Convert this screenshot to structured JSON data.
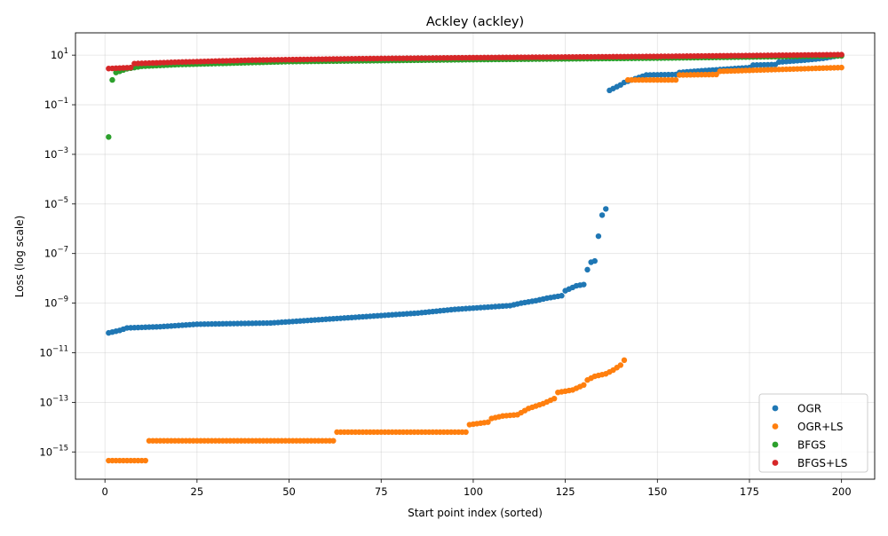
{
  "chart_data": {
    "type": "scatter",
    "title": "Ackley (ackley)",
    "xlabel": "Start point index (sorted)",
    "ylabel": "Loss (log scale)",
    "xlim": [
      -8,
      209
    ],
    "ylim_log10": [
      -16.1,
      1.9
    ],
    "yscale": "log",
    "grid": true,
    "legend_position": "lower-right",
    "x_ticks": [
      0,
      25,
      50,
      75,
      100,
      125,
      150,
      175,
      200
    ],
    "x_tick_labels": [
      "0",
      "25",
      "50",
      "75",
      "100",
      "125",
      "150",
      "175",
      "200"
    ],
    "y_ticks_exp": [
      -15,
      -13,
      -11,
      -9,
      -7,
      -5,
      -3,
      -1,
      1
    ],
    "y_tick_labels": [
      {
        "base": "10",
        "exp": "−15"
      },
      {
        "base": "10",
        "exp": "−13"
      },
      {
        "base": "10",
        "exp": "−11"
      },
      {
        "base": "10",
        "exp": "−9"
      },
      {
        "base": "10",
        "exp": "−7"
      },
      {
        "base": "10",
        "exp": "−5"
      },
      {
        "base": "10",
        "exp": "−3"
      },
      {
        "base": "10",
        "exp": "−1"
      },
      {
        "base": "10",
        "exp": "1"
      }
    ],
    "series": [
      {
        "name": "OGR",
        "color": "#1f77b4",
        "note": "log10 loss anchors over sorted index; points at every integer index 1..200",
        "log10_anchors": [
          [
            1,
            -10.2
          ],
          [
            4,
            -10.1
          ],
          [
            6,
            -10.0
          ],
          [
            15,
            -9.95
          ],
          [
            25,
            -9.85
          ],
          [
            45,
            -9.8
          ],
          [
            55,
            -9.7
          ],
          [
            65,
            -9.6
          ],
          [
            75,
            -9.5
          ],
          [
            85,
            -9.4
          ],
          [
            95,
            -9.25
          ],
          [
            105,
            -9.15
          ],
          [
            110,
            -9.1
          ],
          [
            113,
            -9.0
          ],
          [
            117,
            -8.9
          ],
          [
            120,
            -8.8
          ],
          [
            124,
            -8.7
          ],
          [
            125,
            -8.5
          ],
          [
            128,
            -8.3
          ],
          [
            130,
            -8.25
          ],
          [
            131,
            -7.65
          ],
          [
            132,
            -7.35
          ],
          [
            133,
            -7.3
          ],
          [
            134,
            -6.3
          ],
          [
            135,
            -5.45
          ],
          [
            136,
            -5.2
          ],
          [
            137,
            -0.42
          ],
          [
            140,
            -0.2
          ],
          [
            141,
            -0.1
          ],
          [
            147,
            0.2
          ],
          [
            155,
            0.22
          ],
          [
            156,
            0.3
          ],
          [
            160,
            0.35
          ],
          [
            175,
            0.5
          ],
          [
            176,
            0.6
          ],
          [
            182,
            0.62
          ],
          [
            183,
            0.72
          ],
          [
            190,
            0.8
          ],
          [
            195,
            0.87
          ],
          [
            200,
            1.0
          ]
        ]
      },
      {
        "name": "OGR+LS",
        "color": "#ff7f0e",
        "note": "log10 loss anchors over sorted index; points at every integer index 1..200",
        "log10_anchors": [
          [
            1,
            -15.35
          ],
          [
            11,
            -15.35
          ],
          [
            12,
            -14.55
          ],
          [
            62,
            -14.55
          ],
          [
            63,
            -14.2
          ],
          [
            98,
            -14.2
          ],
          [
            99,
            -13.9
          ],
          [
            104,
            -13.8
          ],
          [
            105,
            -13.65
          ],
          [
            108,
            -13.55
          ],
          [
            112,
            -13.5
          ],
          [
            115,
            -13.25
          ],
          [
            119,
            -13.05
          ],
          [
            122,
            -12.85
          ],
          [
            123,
            -12.6
          ],
          [
            127,
            -12.5
          ],
          [
            130,
            -12.3
          ],
          [
            131,
            -12.1
          ],
          [
            133,
            -11.95
          ],
          [
            136,
            -11.85
          ],
          [
            138,
            -11.7
          ],
          [
            140,
            -11.5
          ],
          [
            141,
            -11.3
          ],
          [
            142,
            0.0
          ],
          [
            155,
            0.0
          ],
          [
            156,
            0.2
          ],
          [
            166,
            0.22
          ],
          [
            167,
            0.35
          ],
          [
            200,
            0.5
          ]
        ]
      },
      {
        "name": "BFGS",
        "color": "#2ca02c",
        "note": "log10 loss anchors over sorted index; points at every integer index 1..200",
        "log10_anchors": [
          [
            1,
            -2.3
          ],
          [
            2,
            0.0
          ],
          [
            3,
            0.3
          ],
          [
            6,
            0.45
          ],
          [
            10,
            0.55
          ],
          [
            20,
            0.62
          ],
          [
            50,
            0.74
          ],
          [
            100,
            0.82
          ],
          [
            150,
            0.88
          ],
          [
            200,
            0.97
          ]
        ]
      },
      {
        "name": "BFGS+LS",
        "color": "#d62728",
        "note": "log10 loss anchors over sorted index; points at every integer index 1..200",
        "log10_anchors": [
          [
            1,
            0.46
          ],
          [
            7,
            0.5
          ],
          [
            8,
            0.66
          ],
          [
            20,
            0.72
          ],
          [
            40,
            0.8
          ],
          [
            70,
            0.86
          ],
          [
            100,
            0.9
          ],
          [
            150,
            0.95
          ],
          [
            200,
            1.02
          ]
        ]
      }
    ]
  }
}
